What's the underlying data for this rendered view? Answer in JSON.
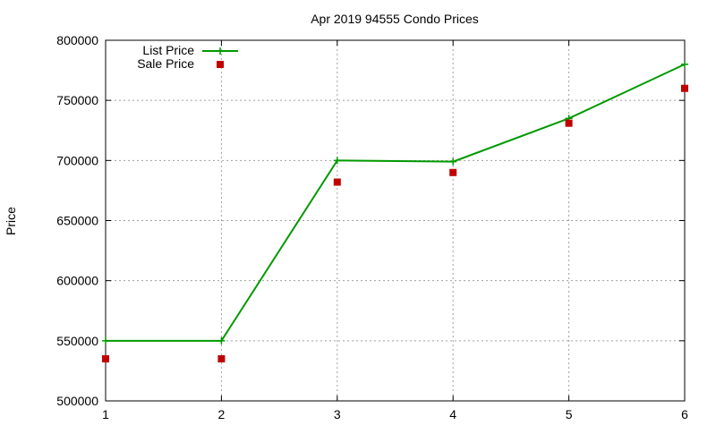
{
  "chart_data": {
    "type": "line",
    "title": "Apr 2019 94555 Condo Prices",
    "xlabel": "",
    "ylabel": "Price",
    "x": [
      1,
      2,
      3,
      4,
      5,
      6
    ],
    "xlim": [
      1,
      6
    ],
    "ylim": [
      500000,
      800000
    ],
    "xticks": [
      "1",
      "2",
      "3",
      "4",
      "5",
      "6"
    ],
    "yticks": [
      "500000",
      "550000",
      "600000",
      "650000",
      "700000",
      "750000",
      "800000"
    ],
    "grid": true,
    "legend_position": "top-left",
    "series": [
      {
        "name": "List Price",
        "style": "line+cross",
        "color": "#009900",
        "values": [
          550000,
          550000,
          700000,
          699000,
          735000,
          780000
        ]
      },
      {
        "name": "Sale Price",
        "style": "square-points",
        "color": "#c00000",
        "values": [
          535000,
          535000,
          682000,
          690000,
          731000,
          760000
        ]
      }
    ]
  }
}
